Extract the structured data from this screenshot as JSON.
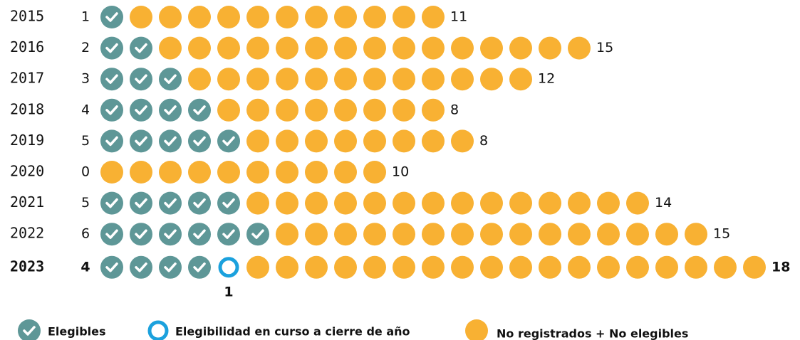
{
  "chart_data": {
    "type": "pictogram",
    "categories": [
      "2015",
      "2016",
      "2017",
      "2018",
      "2019",
      "2020",
      "2021",
      "2022",
      "2023"
    ],
    "series": [
      {
        "name": "Elegibles",
        "color": "#5e9797",
        "values": [
          1,
          2,
          3,
          4,
          5,
          0,
          5,
          6,
          4
        ]
      },
      {
        "name": "Elegibilidad en curso a cierre de año",
        "color": "#1ba1dd",
        "values": [
          0,
          0,
          0,
          0,
          0,
          0,
          0,
          0,
          1
        ]
      },
      {
        "name": "No registrados + No elegibles",
        "color": "#f8b133",
        "values": [
          11,
          15,
          12,
          8,
          8,
          10,
          14,
          15,
          18
        ]
      }
    ],
    "emphasize_last": true
  }
}
